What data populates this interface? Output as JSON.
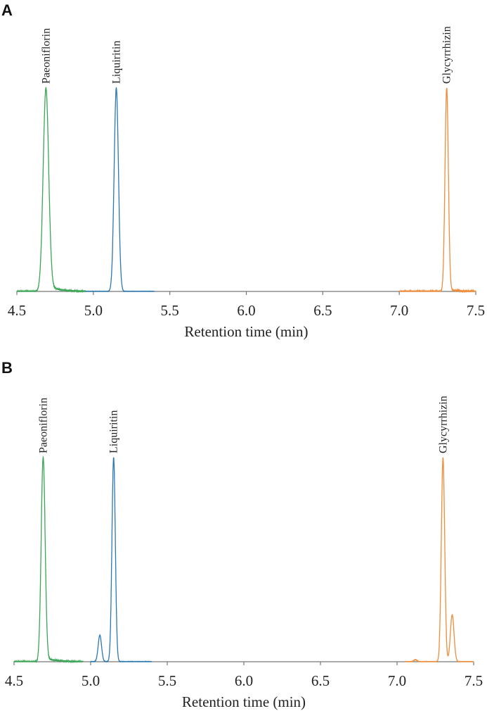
{
  "chart_data": [
    {
      "type": "line",
      "panel": "A",
      "xlabel": "Retention time (min)",
      "ylabel": "",
      "xlim": [
        4.5,
        7.5
      ],
      "ylim": [
        0,
        1
      ],
      "xticks": [
        "4.5",
        "5.0",
        "5.5",
        "6.0",
        "6.5",
        "7.0",
        "7.5"
      ],
      "grid": false,
      "series": [
        {
          "name": "Paeoniflorin",
          "color": "#3aa655",
          "range": [
            4.5,
            4.95
          ],
          "peaks": [
            {
              "rt": 4.69,
              "height": 1.0,
              "width": 0.018
            }
          ],
          "tail": 0.03
        },
        {
          "name": "Liquiritin",
          "color": "#2b78b5",
          "range": [
            4.95,
            5.4
          ],
          "peaks": [
            {
              "rt": 5.15,
              "height": 1.0,
              "width": 0.014
            }
          ],
          "tail": 0.0
        },
        {
          "name": "Glycyrrhizin",
          "color": "#f08c3a",
          "range": [
            7.0,
            7.5
          ],
          "peaks": [
            {
              "rt": 7.31,
              "height": 1.0,
              "width": 0.011
            }
          ],
          "tail": 0.01
        }
      ],
      "labels": [
        {
          "text": "Paeoniflorin",
          "rt": 4.69
        },
        {
          "text": "Liquiritin",
          "rt": 5.15
        },
        {
          "text": "Glycyrrhizin",
          "rt": 7.31
        }
      ]
    },
    {
      "type": "line",
      "panel": "B",
      "xlabel": "Retention time (min)",
      "ylabel": "",
      "xlim": [
        4.5,
        7.5
      ],
      "ylim": [
        0,
        1
      ],
      "xticks": [
        "4.5",
        "5.0",
        "5.5",
        "6.0",
        "6.5",
        "7.0",
        "7.5"
      ],
      "grid": false,
      "series": [
        {
          "name": "Paeoniflorin",
          "color": "#3aa655",
          "range": [
            4.5,
            4.95
          ],
          "peaks": [
            {
              "rt": 4.69,
              "height": 1.0,
              "width": 0.013
            }
          ],
          "tail": 0.02
        },
        {
          "name": "Liquiritin",
          "color": "#2b78b5",
          "range": [
            5.0,
            5.4
          ],
          "peaks": [
            {
              "rt": 5.06,
              "height": 0.13,
              "width": 0.011
            },
            {
              "rt": 5.15,
              "height": 1.0,
              "width": 0.011
            }
          ],
          "tail": 0.0
        },
        {
          "name": "Glycyrrhizin",
          "color": "#f08c3a",
          "range": [
            7.05,
            7.5
          ],
          "peaks": [
            {
              "rt": 7.12,
              "height": 0.01,
              "width": 0.01
            },
            {
              "rt": 7.3,
              "height": 1.0,
              "width": 0.011
            },
            {
              "rt": 7.36,
              "height": 0.23,
              "width": 0.012
            }
          ],
          "tail": 0.0
        }
      ],
      "labels": [
        {
          "text": "Paeoniflorin",
          "rt": 4.69
        },
        {
          "text": "Liquiritin",
          "rt": 5.15
        },
        {
          "text": "Glycyrrhizin",
          "rt": 7.3
        }
      ]
    }
  ]
}
